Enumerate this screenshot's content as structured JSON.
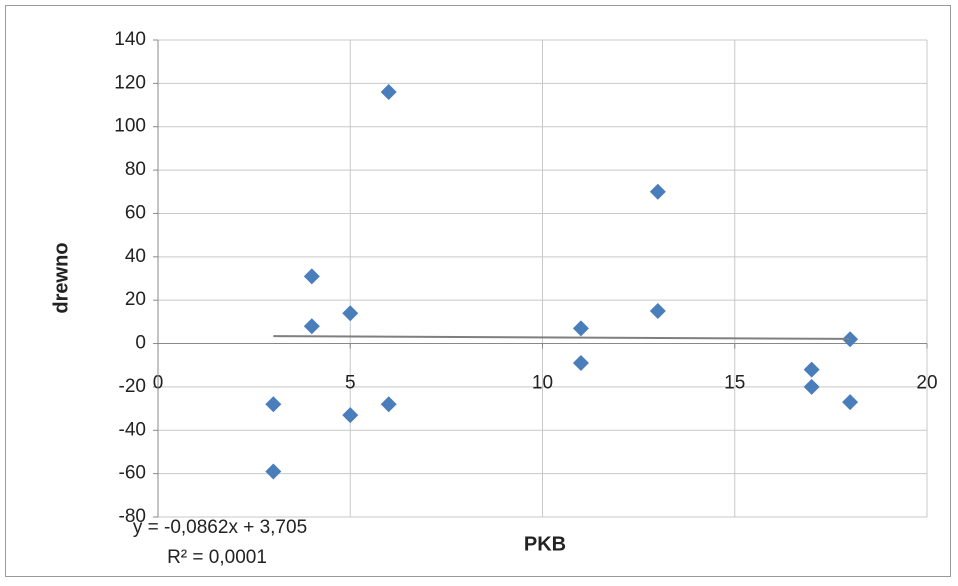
{
  "chart_data": {
    "type": "scatter",
    "x_label": "PKB",
    "y_label": "drewno",
    "series": [
      {
        "name": "drewno",
        "color": "#4a7ebb",
        "x": [
          3,
          3,
          4,
          4,
          5,
          5,
          6,
          6,
          11,
          11,
          13,
          13,
          17,
          17,
          18,
          18
        ],
        "values": [
          -28,
          -59,
          31,
          8,
          14,
          -33,
          116,
          -28,
          7,
          -9,
          70,
          15,
          -12,
          -20,
          2,
          -27
        ]
      }
    ],
    "trendline": {
      "slope": -0.0862,
      "intercept": 3.705,
      "color": "#7f7f7f",
      "equation": "y = -0,0862x + 3,705",
      "r2_label": "R² = 0,0001"
    },
    "xlim": [
      0,
      20
    ],
    "xticks": [
      0,
      5,
      10,
      15,
      20
    ],
    "ylim": [
      -80,
      140
    ],
    "yticks": [
      -80,
      -60,
      -40,
      -20,
      0,
      20,
      40,
      60,
      80,
      100,
      120,
      140
    ],
    "grid": true
  }
}
